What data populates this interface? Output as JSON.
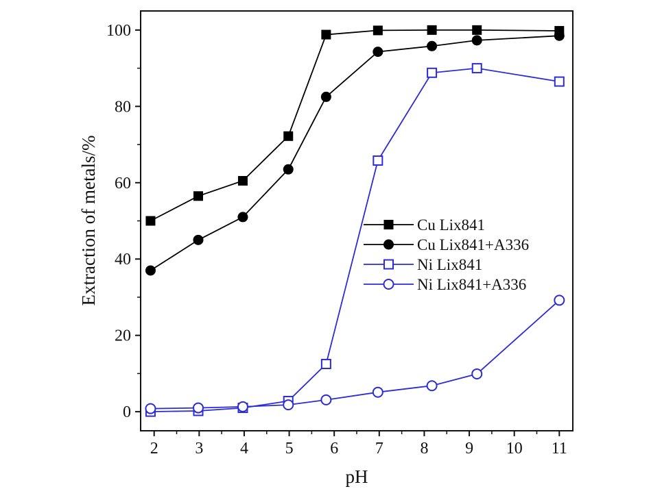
{
  "chart_data": {
    "type": "line",
    "title": "",
    "xlabel": "pH",
    "ylabel": "Extraction of metals/%",
    "xlim": [
      1.7,
      11.3
    ],
    "ylim": [
      -5,
      105
    ],
    "x_ticks": [
      2,
      3,
      4,
      5,
      6,
      7,
      8,
      9,
      10,
      11
    ],
    "x_tick_labels": [
      "2",
      "3",
      "4",
      "5",
      "6",
      "7",
      "8",
      "9",
      "10",
      "11"
    ],
    "y_ticks": [
      0,
      20,
      40,
      60,
      80,
      100
    ],
    "y_tick_labels": [
      "0",
      "20",
      "40",
      "60",
      "80",
      "100"
    ],
    "grid": false,
    "legend_position": "center-right",
    "series": [
      {
        "name": "Cu Lix841",
        "color": "#000000",
        "marker": "square-filled",
        "x": [
          1.92,
          2.98,
          3.97,
          4.98,
          5.82,
          6.97,
          8.17,
          9.17,
          11.0
        ],
        "y": [
          50.0,
          56.5,
          60.5,
          72.2,
          98.8,
          99.9,
          100.0,
          100.0,
          99.8
        ]
      },
      {
        "name": "Cu Lix841+A336",
        "color": "#000000",
        "marker": "circle-filled",
        "x": [
          1.92,
          2.98,
          3.97,
          4.98,
          5.82,
          6.97,
          8.17,
          9.17,
          11.0
        ],
        "y": [
          37.0,
          45.0,
          51.0,
          63.5,
          82.5,
          94.3,
          95.8,
          97.3,
          98.5
        ]
      },
      {
        "name": "Ni Lix841",
        "color": "#2b2bd9",
        "marker": "square-open",
        "x": [
          1.92,
          2.98,
          3.97,
          4.98,
          5.82,
          6.97,
          8.17,
          9.17,
          11.0
        ],
        "y": [
          0.0,
          0.2,
          1.0,
          2.8,
          12.5,
          65.8,
          88.8,
          90.0,
          86.5
        ]
      },
      {
        "name": "Ni Lix841+A336",
        "color": "#2b2bd9",
        "marker": "circle-open",
        "x": [
          1.92,
          2.98,
          3.97,
          4.98,
          5.82,
          6.97,
          8.17,
          9.17,
          11.0
        ],
        "y": [
          0.8,
          1.0,
          1.3,
          1.8,
          3.1,
          5.1,
          6.8,
          9.9,
          29.2
        ]
      }
    ]
  }
}
